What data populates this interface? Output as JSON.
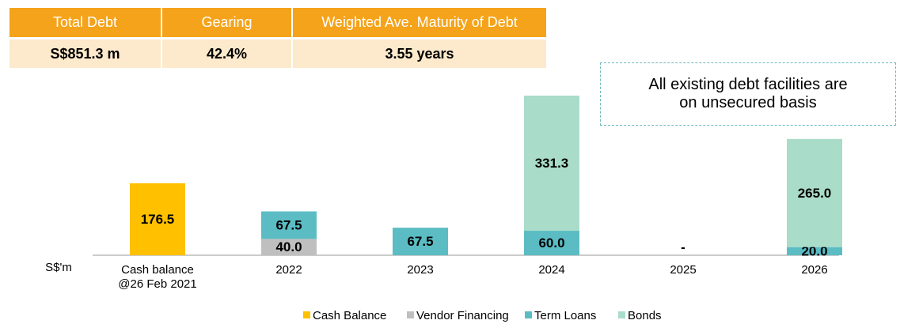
{
  "table": {
    "headers": [
      "Total Debt",
      "Gearing",
      "Weighted Ave. Maturity of Debt"
    ],
    "values": [
      "S$851.3 m",
      "42.4%",
      "3.55 years"
    ]
  },
  "callout": "All existing debt facilities are on unsecured basis",
  "chart_data": {
    "type": "bar",
    "stacked": true,
    "y_label": "S$'m",
    "categories": [
      "Cash balance\n@26 Feb 2021",
      "2022",
      "2023",
      "2024",
      "2025",
      "2026"
    ],
    "series": [
      {
        "name": "Cash Balance",
        "color": "#ffc000",
        "values": [
          176.5,
          null,
          null,
          null,
          null,
          null
        ],
        "value_labels": [
          "176.5",
          null,
          null,
          null,
          null,
          null
        ]
      },
      {
        "name": "Vendor Financing",
        "color": "#bfbfbf",
        "values": [
          null,
          40.0,
          null,
          null,
          null,
          null
        ],
        "value_labels": [
          null,
          "40.0",
          null,
          null,
          null,
          null
        ]
      },
      {
        "name": "Term Loans",
        "color": "#5bbcc4",
        "values": [
          null,
          67.5,
          67.5,
          60.0,
          null,
          20.0
        ],
        "value_labels": [
          null,
          "67.5",
          "67.5",
          "60.0",
          null,
          "20.0"
        ]
      },
      {
        "name": "Bonds",
        "color": "#a9dcc9",
        "values": [
          null,
          null,
          null,
          331.3,
          null,
          265.0
        ],
        "value_labels": [
          null,
          null,
          null,
          "331.3",
          null,
          "265.0"
        ]
      }
    ],
    "empty_label": "-",
    "ylim": [
      0,
      400
    ],
    "legend_position": "bottom"
  }
}
